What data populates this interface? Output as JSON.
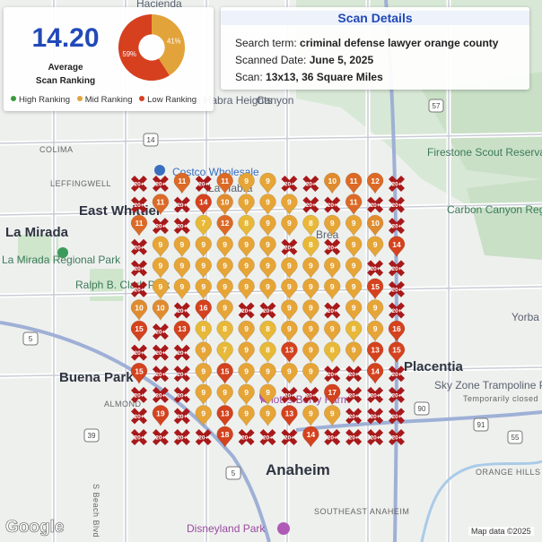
{
  "ranking_summary": {
    "average_value": "14.20",
    "average_label_line1": "Average",
    "average_label_line2": "Scan Ranking",
    "donut": [
      {
        "label": "41%",
        "percent": 41,
        "color": "#e2a33a"
      },
      {
        "label": "59%",
        "percent": 59,
        "color": "#d6401f"
      }
    ],
    "legend": [
      {
        "label": "High Ranking",
        "color": "#3c9a3c"
      },
      {
        "label": "Mid Ranking",
        "color": "#e2a33a"
      },
      {
        "label": "Low Ranking",
        "color": "#d6401f"
      }
    ]
  },
  "scan_details": {
    "title": "Scan Details",
    "search_term_label": "Search term: ",
    "search_term": "criminal defense lawyer orange county",
    "date_label": "Scanned Date: ",
    "date": "June 5, 2025",
    "scan_label": "Scan: ",
    "scan": "13x13, 36 Square Miles"
  },
  "map": {
    "places": [
      {
        "text": "Hacienda",
        "kind": "normal"
      },
      {
        "text": "La Habra Heights",
        "kind": "normal"
      },
      {
        "text": "Canyon",
        "kind": "normal"
      },
      {
        "text": "COLIMA",
        "kind": "small"
      },
      {
        "text": "LEFFINGWELL",
        "kind": "small"
      },
      {
        "text": "Costco Wholesale",
        "kind": "blue"
      },
      {
        "text": "La Habra",
        "kind": "normal"
      },
      {
        "text": "East Whittier",
        "kind": "big"
      },
      {
        "text": "La Mirada",
        "kind": "big"
      },
      {
        "text": "La Mirada Regional Park",
        "kind": "green"
      },
      {
        "text": "Firestone Scout Reservation",
        "kind": "green"
      },
      {
        "text": "Carbon Canyon Regional Park",
        "kind": "green"
      },
      {
        "text": "Ralph B. Clark Park",
        "kind": "green"
      },
      {
        "text": "Brea",
        "kind": "normal"
      },
      {
        "text": "Yorba",
        "kind": "normal"
      },
      {
        "text": "Placentia",
        "kind": "big"
      },
      {
        "text": "Sky Zone Trampoline Park",
        "kind": "normal"
      },
      {
        "text": "Temporarily closed",
        "kind": "small"
      },
      {
        "text": "Buena Park",
        "kind": "big"
      },
      {
        "text": "ALMOND",
        "kind": "small"
      },
      {
        "text": "Knott's Berry Farm",
        "kind": "pink"
      },
      {
        "text": "Anaheim",
        "kind": "big"
      },
      {
        "text": "ORANGE HILLS",
        "kind": "small"
      },
      {
        "text": "SOUTHEAST ANAHEIM",
        "kind": "small"
      },
      {
        "text": "Disneyland Park",
        "kind": "pink"
      },
      {
        "text": "S Beach Blvd",
        "kind": "small"
      }
    ],
    "road_shields": [
      "5",
      "39",
      "57",
      "90",
      "91",
      "55",
      "5",
      "14"
    ],
    "google_logo": "Google",
    "attribution": "Map data ©2025"
  },
  "grid": {
    "columns": 13,
    "rows": 13,
    "legend_colors": {
      "high": "#3c9a3c",
      "mid": "#e2a33a",
      "low": "#d6401f",
      "none": "#b81f1f"
    },
    "cells": [
      [
        "20+",
        "20+",
        "11",
        "20+",
        "11",
        "9",
        "9",
        "20+",
        "20+",
        "10",
        "11",
        "12",
        "20+"
      ],
      [
        "20+",
        "11",
        "20+",
        "14",
        "10",
        "9",
        "9",
        "9",
        "20+",
        "20+",
        "11",
        "20+",
        "20+"
      ],
      [
        "11",
        "20+",
        "20+",
        "7",
        "12",
        "8",
        "9",
        "9",
        "8",
        "9",
        "9",
        "10",
        "20+"
      ],
      [
        "20+",
        "9",
        "9",
        "9",
        "9",
        "9",
        "9",
        "20+",
        "8",
        "20+",
        "9",
        "9",
        "14"
      ],
      [
        "20+",
        "9",
        "9",
        "9",
        "9",
        "9",
        "9",
        "9",
        "9",
        "9",
        "9",
        "20+",
        "20+"
      ],
      [
        "20+",
        "9",
        "9",
        "9",
        "9",
        "9",
        "9",
        "9",
        "9",
        "9",
        "9",
        "15",
        "20+"
      ],
      [
        "10",
        "10",
        "20+",
        "16",
        "9",
        "20+",
        "20+",
        "9",
        "9",
        "20+",
        "9",
        "9",
        "20+"
      ],
      [
        "15",
        "20+",
        "13",
        "8",
        "8",
        "9",
        "8",
        "9",
        "9",
        "9",
        "8",
        "9",
        "16"
      ],
      [
        "20+",
        "20+",
        "20+",
        "9",
        "7",
        "9",
        "8",
        "13",
        "9",
        "8",
        "9",
        "13",
        "15"
      ],
      [
        "15",
        "20+",
        "20+",
        "9",
        "15",
        "9",
        "9",
        "9",
        "9",
        "20+",
        "20+",
        "14",
        "20+"
      ],
      [
        "20+",
        "20+",
        "20+",
        "9",
        "9",
        "9",
        "9",
        "20+",
        "20+",
        "17",
        "20+",
        "20+",
        "20+"
      ],
      [
        "20+",
        "19",
        "20+",
        "9",
        "13",
        "9",
        "9",
        "13",
        "9",
        "9",
        "20+",
        "20+",
        "20+"
      ],
      [
        "20+",
        "20+",
        "20+",
        "20+",
        "18",
        "20+",
        "20+",
        "20+",
        "14",
        "20+",
        "20+",
        "20+",
        "20+"
      ]
    ]
  }
}
